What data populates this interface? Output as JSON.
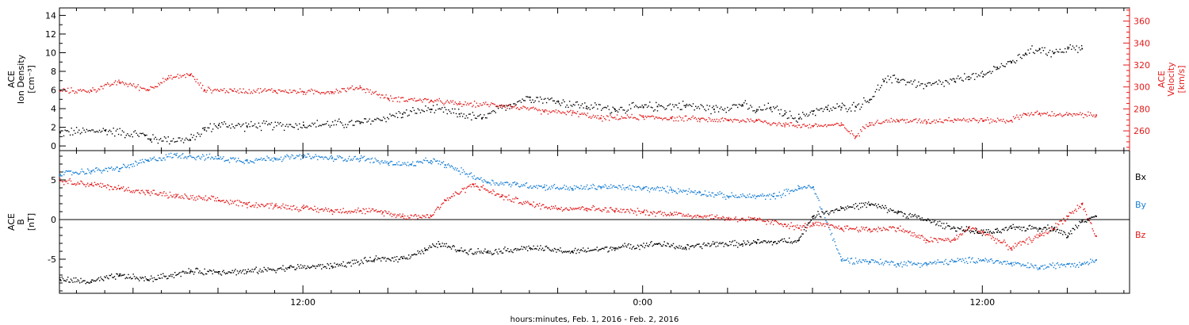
{
  "xlabel": "hours:minutes, Feb.  1, 2016 - Feb.  2, 2016",
  "x_ticks": [
    "12:00",
    "0:00",
    "12:00"
  ],
  "colors": {
    "black": "#000000",
    "blue": "#1a7fd4",
    "red": "#e31a1a"
  },
  "chart_data": [
    {
      "type": "scatter",
      "panel": "top",
      "ylabel_left": [
        "ACE",
        "Ion Density",
        "[cm⁻³]"
      ],
      "ylabel_right": [
        "ACE",
        "Velocity",
        "[km/s]"
      ],
      "left_ticks": [
        "0",
        "2",
        "4",
        "6",
        "8",
        "10",
        "12",
        "14"
      ],
      "right_ticks": [
        "260",
        "280",
        "300",
        "320",
        "340",
        "360"
      ],
      "xlim_hours": [
        3.4,
        41.2
      ],
      "ylim_left": [
        -0.5,
        14.8
      ],
      "ylim_right": [
        242,
        372
      ],
      "series": [
        {
          "axis": "left",
          "color": "#000000",
          "x": [
            3.4,
            5.0,
            6.4,
            6.6,
            8.0,
            8.5,
            9.0,
            10.0,
            12.0,
            14.0,
            15.5,
            16.5,
            17.5,
            18.3,
            19.3,
            20.0,
            21.0,
            22.0,
            23.0,
            24.0,
            24.5,
            25.5,
            26.5,
            27.5,
            28.0,
            28.5,
            29.0,
            29.5,
            30.0,
            30.5,
            31.0,
            31.5,
            32.0,
            32.5,
            33.0,
            34.0,
            35.0,
            35.5,
            36.0,
            36.5,
            37.0,
            37.5,
            38.0,
            38.5,
            39.0,
            39.5
          ],
          "y": [
            1.5,
            1.7,
            1.2,
            0.8,
            0.7,
            1.8,
            2.3,
            2.2,
            2.3,
            2.5,
            3.5,
            4.0,
            3.5,
            3.0,
            4.5,
            5.3,
            4.8,
            4.3,
            4.0,
            4.2,
            4.3,
            4.4,
            4.0,
            4.5,
            3.8,
            4.2,
            3.5,
            3.0,
            3.8,
            4.0,
            4.2,
            4.3,
            5.0,
            7.0,
            7.2,
            6.5,
            7.0,
            7.5,
            7.5,
            8.5,
            9.0,
            10.0,
            10.5,
            10.0,
            10.5,
            10.5
          ]
        },
        {
          "axis": "right",
          "color": "#e31a1a",
          "x": [
            3.4,
            4.5,
            5.5,
            6.5,
            7.2,
            8.0,
            8.5,
            9.5,
            11.0,
            12.0,
            13.0,
            14.0,
            15.0,
            16.5,
            17.5,
            19.0,
            20.5,
            21.5,
            22.5,
            24.0,
            25.0,
            26.0,
            27.0,
            28.0,
            29.0,
            30.0,
            31.0,
            31.5,
            32.0,
            33.0,
            34.0,
            35.0,
            36.0,
            37.0,
            37.5,
            38.0,
            39.0,
            40.0
          ],
          "y": [
            297,
            297,
            305,
            298,
            308,
            312,
            298,
            297,
            297,
            296,
            296,
            300,
            290,
            288,
            285,
            284,
            278,
            277,
            272,
            273,
            272,
            271,
            270,
            270,
            266,
            265,
            266,
            255,
            268,
            270,
            269,
            271,
            270,
            270,
            276,
            276,
            275,
            275
          ]
        }
      ]
    },
    {
      "type": "scatter",
      "panel": "bottom",
      "ylabel_left": [
        "ACE",
        "B",
        "[nT]"
      ],
      "left_ticks": [
        "-5",
        "0",
        "5"
      ],
      "legend": [
        "Bx",
        "By",
        "Bz"
      ],
      "legend_placement": "right",
      "xlim_hours": [
        3.4,
        41.2
      ],
      "ylim": [
        -9.3,
        8.7
      ],
      "series": [
        {
          "name": "Bx",
          "color": "#000000",
          "x": [
            3.4,
            4.5,
            5.5,
            6.5,
            8.0,
            9.0,
            10.0,
            11.5,
            13.0,
            14.5,
            15.5,
            16.3,
            16.8,
            17.5,
            18.5,
            20.0,
            21.5,
            23.0,
            24.5,
            25.5,
            26.5,
            27.5,
            28.0,
            28.6,
            29.5,
            30.0,
            31.0,
            32.0,
            33.0,
            34.0,
            35.0,
            35.8,
            36.5,
            37.0,
            38.0,
            38.5,
            39.0,
            39.5,
            40.0
          ],
          "y": [
            -7.5,
            -7.8,
            -7.0,
            -7.5,
            -6.5,
            -6.5,
            -6.5,
            -6.0,
            -5.8,
            -5.0,
            -4.8,
            -3.8,
            -3.0,
            -3.8,
            -4.0,
            -3.5,
            -4.0,
            -3.5,
            -3.0,
            -3.5,
            -3.0,
            -3.0,
            -2.8,
            -2.8,
            -2.5,
            0.5,
            1.5,
            2.0,
            1.0,
            0.0,
            -1.0,
            -1.5,
            -1.5,
            -1.0,
            -1.0,
            -1.0,
            -2.0,
            0.0,
            0.5
          ]
        },
        {
          "name": "By",
          "color": "#1a7fd4",
          "x": [
            3.4,
            4.5,
            5.5,
            6.5,
            7.5,
            9.0,
            10.0,
            11.0,
            12.0,
            13.0,
            14.0,
            15.0,
            15.8,
            16.5,
            17.0,
            18.5,
            19.5,
            20.5,
            21.5,
            22.5,
            24.0,
            25.0,
            26.0,
            27.0,
            28.0,
            28.6,
            29.5,
            30.0,
            31.0,
            32.0,
            33.0,
            34.0,
            35.0,
            36.0,
            37.0,
            38.0,
            39.0,
            39.5,
            40.0
          ],
          "y": [
            5.8,
            6.2,
            6.5,
            7.5,
            8.2,
            7.8,
            7.5,
            7.8,
            8.0,
            7.8,
            7.8,
            7.2,
            7.0,
            7.5,
            7.0,
            4.8,
            4.5,
            4.2,
            4.0,
            4.2,
            4.0,
            3.8,
            3.5,
            3.0,
            3.0,
            3.0,
            4.0,
            4.2,
            -5.0,
            -5.2,
            -5.5,
            -5.5,
            -5.2,
            -5.0,
            -5.5,
            -6.0,
            -5.5,
            -5.5,
            -5.0
          ]
        },
        {
          "name": "Bz",
          "color": "#e31a1a",
          "x": [
            3.4,
            4.5,
            5.5,
            6.5,
            7.5,
            9.0,
            10.0,
            11.0,
            12.0,
            13.0,
            14.0,
            14.8,
            15.5,
            16.5,
            17.0,
            18.0,
            19.0,
            20.0,
            21.0,
            22.0,
            23.0,
            24.0,
            25.0,
            26.0,
            27.0,
            28.0,
            29.0,
            29.5,
            30.0,
            31.0,
            32.0,
            33.0,
            34.0,
            35.0,
            35.5,
            36.0,
            37.0,
            38.0,
            38.5,
            39.0,
            39.5,
            40.0
          ],
          "y": [
            5.0,
            4.5,
            4.0,
            3.5,
            3.0,
            2.5,
            2.0,
            1.8,
            1.5,
            1.2,
            1.2,
            1.0,
            0.5,
            0.5,
            2.5,
            4.5,
            3.0,
            2.0,
            1.5,
            1.5,
            1.2,
            1.0,
            0.8,
            0.5,
            0.2,
            0.0,
            -0.5,
            -1.0,
            -0.5,
            -1.0,
            -1.2,
            -1.0,
            -2.5,
            -2.5,
            -1.0,
            -1.5,
            -3.5,
            -2.0,
            -1.0,
            0.5,
            2.0,
            -2.0
          ]
        }
      ]
    }
  ]
}
